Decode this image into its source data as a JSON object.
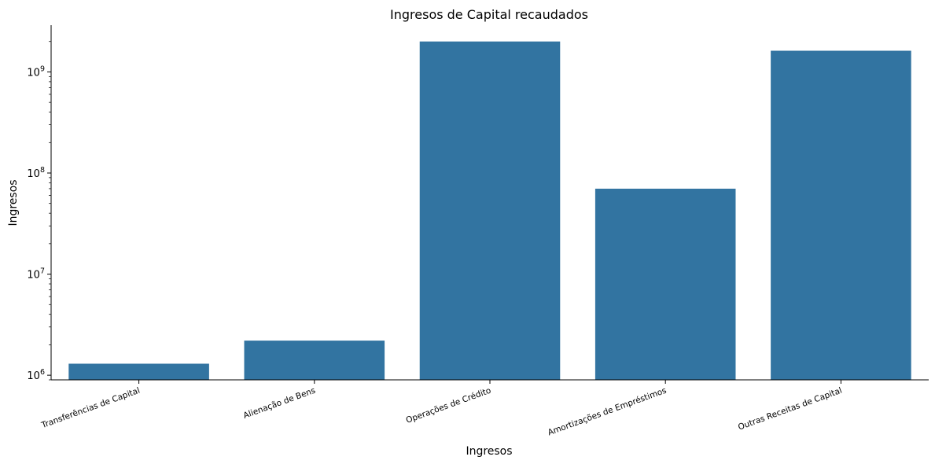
{
  "chart_data": {
    "type": "bar",
    "title": "Ingresos de Capital recaudados",
    "xlabel": "Ingresos",
    "ylabel": "Ingresos",
    "yscale": "log",
    "ylim": [
      900000,
      2900000000
    ],
    "yticks": [
      {
        "value": 1000000,
        "base": "10",
        "exp": "6"
      },
      {
        "value": 10000000,
        "base": "10",
        "exp": "7"
      },
      {
        "value": 100000000,
        "base": "10",
        "exp": "8"
      },
      {
        "value": 1000000000,
        "base": "10",
        "exp": "9"
      }
    ],
    "categories": [
      "Transferências de Capital",
      "Alienação de Bens",
      "Operações de Crédito",
      "Amortizações de Empréstimos",
      "Outras Receitas de Capital"
    ],
    "values": [
      1300000,
      2200000,
      2000000000,
      70000000,
      1620000000
    ],
    "bar_color": "#3274a1",
    "grid": false,
    "legend": "none"
  }
}
